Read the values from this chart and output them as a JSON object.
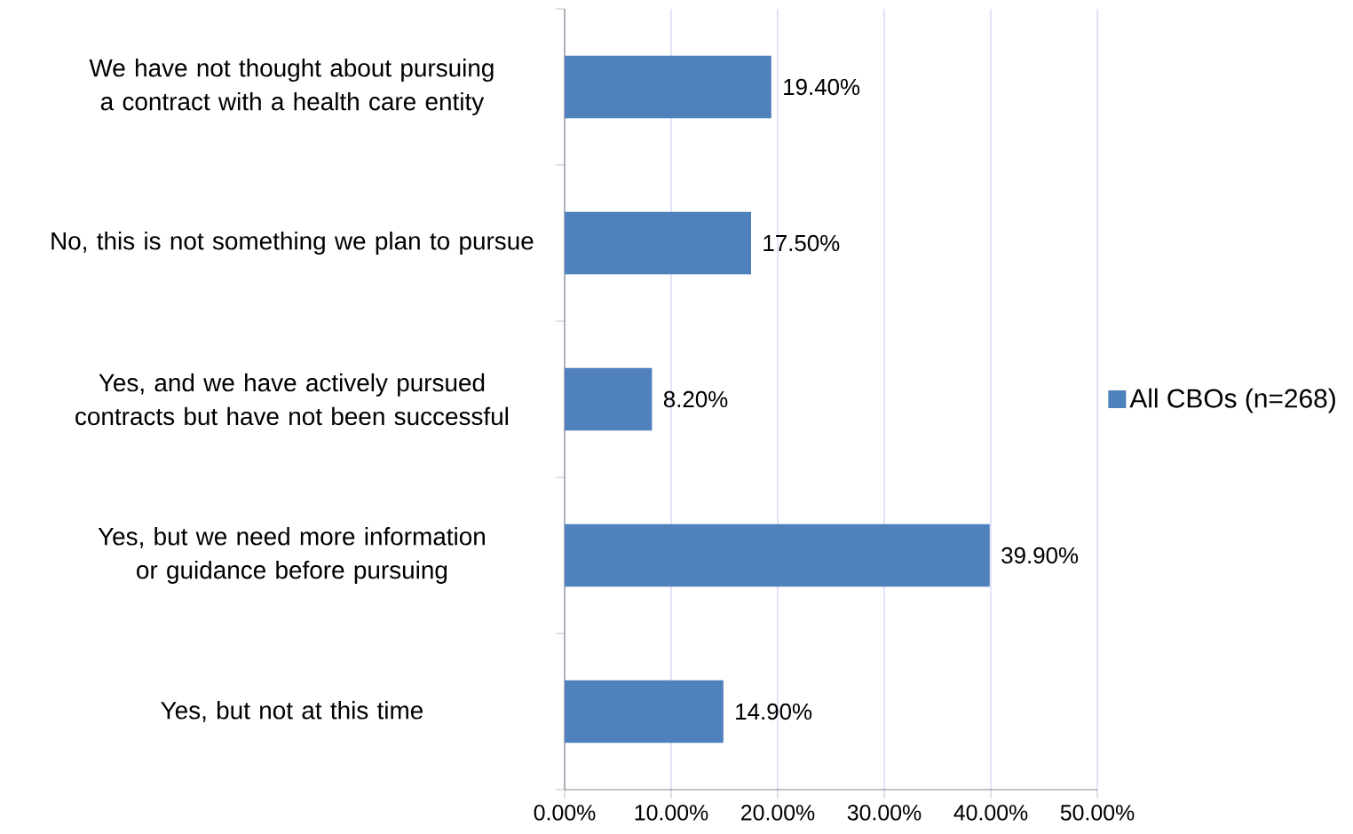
{
  "chart_data": {
    "type": "bar",
    "orientation": "horizontal",
    "categories": [
      "We have not thought about pursuing a contract with a health care entity",
      "No, this is not something we plan to pursue",
      "Yes, and we have actively pursued contracts but have not been successful",
      "Yes, but we need more information or guidance before pursuing",
      "Yes, but not at this time"
    ],
    "series": [
      {
        "name": "All CBOs (n=268)",
        "color": "#4f81bd",
        "values": [
          19.4,
          17.5,
          8.2,
          39.9,
          14.9
        ]
      }
    ],
    "value_labels": [
      "19.40%",
      "17.50%",
      "8.20%",
      "39.90%",
      "14.90%"
    ],
    "xlim": [
      0,
      50
    ],
    "xticks": [
      {
        "value": 0,
        "label": "0.00%"
      },
      {
        "value": 10,
        "label": "10.00%"
      },
      {
        "value": 20,
        "label": "20.00%"
      },
      {
        "value": 30,
        "label": "30.00%"
      },
      {
        "value": 40,
        "label": "40.00%"
      },
      {
        "value": 50,
        "label": "50.00%"
      }
    ],
    "grid": "x",
    "legend": "right"
  }
}
